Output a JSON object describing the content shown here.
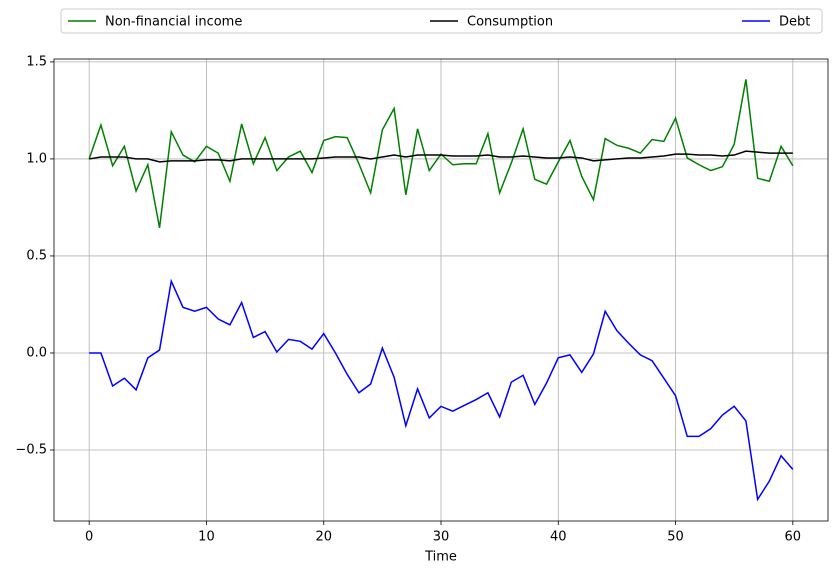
{
  "chart_data": {
    "type": "line",
    "x": [
      0,
      1,
      2,
      3,
      4,
      5,
      6,
      7,
      8,
      9,
      10,
      11,
      12,
      13,
      14,
      15,
      16,
      17,
      18,
      19,
      20,
      21,
      22,
      23,
      24,
      25,
      26,
      27,
      28,
      29,
      30,
      31,
      32,
      33,
      34,
      35,
      36,
      37,
      38,
      39,
      40,
      41,
      42,
      43,
      44,
      45,
      46,
      47,
      48,
      49,
      50,
      51,
      52,
      53,
      54,
      55,
      56,
      57,
      58,
      59,
      60
    ],
    "x_label": "Time",
    "series": [
      {
        "name": "Non-financial income",
        "color": "#008000",
        "values": [
          1.0,
          1.175,
          0.965,
          1.065,
          0.835,
          0.97,
          0.645,
          1.14,
          1.02,
          0.985,
          1.065,
          1.03,
          0.885,
          1.18,
          0.975,
          1.11,
          0.94,
          1.01,
          1.04,
          0.93,
          1.095,
          1.115,
          1.11,
          0.975,
          0.825,
          1.15,
          1.26,
          0.815,
          1.155,
          0.94,
          1.025,
          0.97,
          0.975,
          0.975,
          1.13,
          0.825,
          0.98,
          1.155,
          0.895,
          0.87,
          0.985,
          1.095,
          0.91,
          0.79,
          1.105,
          1.07,
          1.055,
          1.03,
          1.1,
          1.09,
          1.21,
          1.005,
          0.97,
          0.94,
          0.96,
          1.075,
          1.41,
          0.9,
          0.885,
          1.065,
          0.965
        ]
      },
      {
        "name": "Consumption",
        "color": "#000000",
        "values": [
          1.0,
          1.01,
          1.01,
          1.01,
          1.0,
          1.0,
          0.985,
          0.99,
          0.99,
          0.99,
          0.995,
          0.995,
          0.99,
          1.0,
          1.0,
          1.0,
          1.0,
          1.0,
          1.0,
          1.0,
          1.005,
          1.01,
          1.01,
          1.01,
          1.0,
          1.01,
          1.02,
          1.01,
          1.02,
          1.02,
          1.02,
          1.015,
          1.015,
          1.015,
          1.02,
          1.01,
          1.01,
          1.015,
          1.01,
          1.005,
          1.005,
          1.01,
          1.005,
          0.99,
          0.995,
          1.0,
          1.005,
          1.005,
          1.01,
          1.015,
          1.025,
          1.025,
          1.02,
          1.02,
          1.015,
          1.02,
          1.04,
          1.035,
          1.03,
          1.03,
          1.03
        ]
      },
      {
        "name": "Debt",
        "color": "#0000ff",
        "values": [
          0,
          0,
          -0.17,
          -0.13,
          -0.19,
          -0.025,
          0.015,
          0.37,
          0.235,
          0.215,
          0.235,
          0.175,
          0.145,
          0.26,
          0.08,
          0.11,
          0.005,
          0.07,
          0.06,
          0.02,
          0.1,
          0.0,
          -0.11,
          -0.205,
          -0.16,
          0.025,
          -0.125,
          -0.375,
          -0.185,
          -0.335,
          -0.275,
          -0.3,
          -0.27,
          -0.24,
          -0.205,
          -0.33,
          -0.15,
          -0.115,
          -0.265,
          -0.155,
          -0.025,
          -0.01,
          -0.1,
          -0.005,
          0.215,
          0.115,
          0.05,
          -0.01,
          -0.04,
          -0.13,
          -0.22,
          -0.43,
          -0.43,
          -0.39,
          -0.32,
          -0.275,
          -0.35,
          -0.755,
          -0.66,
          -0.53,
          -0.6
        ]
      }
    ],
    "xlim": [
      -3,
      63
    ],
    "ylim": [
      -0.866,
      1.515
    ],
    "xticks": [
      0,
      10,
      20,
      30,
      40,
      50,
      60
    ],
    "yticks": [
      {
        "value": -0.5,
        "label": "−0.5"
      },
      {
        "value": 0,
        "label": "0.0"
      },
      0.5,
      {
        "value": 1,
        "label": "1.0"
      },
      1.5
    ],
    "grid": true,
    "legend": "top"
  }
}
